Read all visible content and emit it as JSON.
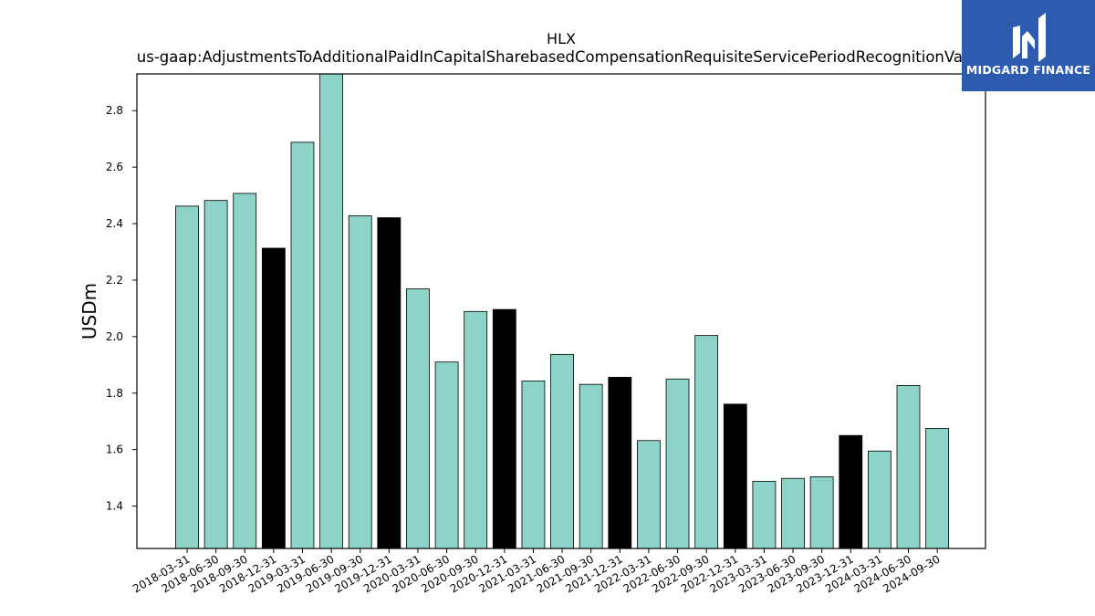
{
  "chart_data": {
    "type": "bar",
    "title": "HLX",
    "subtitle": "us-gaap:AdjustmentsToAdditionalPaidInCapitalSharebasedCompensationRequisiteServicePeriodRecognitionValue",
    "xlabel": "",
    "ylabel": "USDm",
    "ylim": [
      1.25,
      2.93
    ],
    "yticks": [
      "1.4",
      "1.6",
      "1.8",
      "2.0",
      "2.2",
      "2.4",
      "2.6",
      "2.8"
    ],
    "grid": false,
    "colors": {
      "quarter": "#8dd3c7",
      "year_end": "#000000",
      "edge": "#000000"
    },
    "categories": [
      "2018-03-31",
      "2018-06-30",
      "2018-09-30",
      "2018-12-31",
      "2019-03-31",
      "2019-06-30",
      "2019-09-30",
      "2019-12-31",
      "2020-03-31",
      "2020-06-30",
      "2020-09-30",
      "2020-12-31",
      "2021-03-31",
      "2021-06-30",
      "2021-09-30",
      "2021-12-31",
      "2022-03-31",
      "2022-06-30",
      "2022-09-30",
      "2022-12-31",
      "2023-03-31",
      "2023-06-30",
      "2023-09-30",
      "2023-12-31",
      "2024-03-31",
      "2024-06-30",
      "2024-09-30"
    ],
    "values": [
      2.462,
      2.482,
      2.507,
      2.313,
      2.688,
      2.93,
      2.428,
      2.421,
      2.169,
      1.91,
      2.089,
      2.096,
      1.843,
      1.937,
      1.831,
      1.856,
      1.632,
      1.85,
      2.004,
      1.761,
      1.488,
      1.498,
      1.504,
      1.65,
      1.595,
      1.827,
      1.675
    ]
  },
  "logo": {
    "text": "MIDGARD FINANCE",
    "icon": "midgard-logo-icon",
    "background": "#2d5bb0"
  }
}
